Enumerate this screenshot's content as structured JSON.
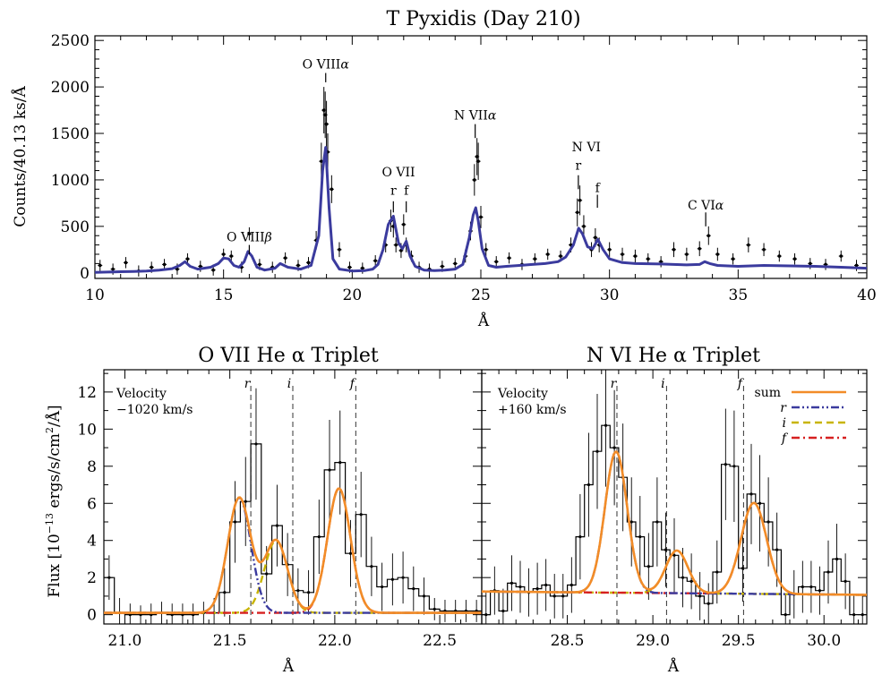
{
  "colors": {
    "model": "#3b3b9e",
    "sum": "#f28c28",
    "r": "#3b3b9e",
    "i": "#c8b400",
    "f": "#d62020",
    "data": "#000000"
  },
  "chart_data": [
    {
      "id": "top",
      "type": "line",
      "title": "T Pyxidis (Day 210)",
      "xlabel": "Å",
      "ylabel": "Counts/40.13 ks/Å",
      "xlim": [
        10,
        40
      ],
      "ylim": [
        -60,
        2550
      ],
      "xticks": [
        10,
        15,
        20,
        25,
        30,
        35,
        40
      ],
      "yticks": [
        0,
        500,
        1000,
        1500,
        2000,
        2500
      ],
      "series": [
        {
          "role": "model",
          "x": [
            10.0,
            10.5,
            11.0,
            11.5,
            12.0,
            12.5,
            13.0,
            13.3,
            13.5,
            13.7,
            14.0,
            14.5,
            14.8,
            15.0,
            15.2,
            15.4,
            15.6,
            15.8,
            15.95,
            16.1,
            16.3,
            16.6,
            17.0,
            17.2,
            17.5,
            18.0,
            18.4,
            18.7,
            18.85,
            18.97,
            19.1,
            19.25,
            19.5,
            20.0,
            20.5,
            20.8,
            21.0,
            21.2,
            21.4,
            21.6,
            21.8,
            21.95,
            22.1,
            22.25,
            22.45,
            22.8,
            23.2,
            23.6,
            24.0,
            24.3,
            24.55,
            24.7,
            24.8,
            24.9,
            25.05,
            25.3,
            25.6,
            26.0,
            26.5,
            27.0,
            27.5,
            28.0,
            28.3,
            28.6,
            28.8,
            28.95,
            29.15,
            29.35,
            29.55,
            29.75,
            30.0,
            30.5,
            31.0,
            32.0,
            33.0,
            33.5,
            33.7,
            33.9,
            34.2,
            35.0,
            36.0,
            37.0,
            38.0,
            39.0,
            40.0
          ],
          "y": [
            5,
            8,
            12,
            15,
            20,
            30,
            45,
            80,
            120,
            70,
            40,
            60,
            100,
            160,
            150,
            80,
            60,
            120,
            230,
            180,
            60,
            30,
            50,
            100,
            60,
            40,
            80,
            400,
            1100,
            1350,
            700,
            150,
            40,
            20,
            25,
            40,
            90,
            250,
            520,
            610,
            320,
            260,
            340,
            180,
            70,
            30,
            25,
            30,
            40,
            90,
            380,
            620,
            700,
            560,
            260,
            80,
            60,
            70,
            80,
            90,
            100,
            120,
            170,
            300,
            480,
            420,
            280,
            260,
            360,
            250,
            150,
            110,
            100,
            95,
            85,
            90,
            120,
            100,
            80,
            70,
            80,
            75,
            70,
            60,
            50
          ]
        },
        {
          "role": "data",
          "x": [
            10.2,
            10.7,
            11.2,
            11.7,
            12.2,
            12.7,
            13.2,
            13.6,
            14.1,
            14.6,
            15.0,
            15.3,
            15.7,
            16.0,
            16.4,
            16.9,
            17.4,
            17.9,
            18.3,
            18.6,
            18.8,
            18.9,
            18.95,
            19.0,
            19.05,
            19.2,
            19.5,
            19.9,
            20.4,
            20.9,
            21.3,
            21.5,
            21.6,
            21.7,
            21.9,
            22.0,
            22.1,
            22.3,
            22.6,
            23.0,
            23.5,
            24.0,
            24.4,
            24.6,
            24.75,
            24.85,
            24.9,
            25.0,
            25.2,
            25.6,
            26.1,
            26.6,
            27.1,
            27.6,
            28.1,
            28.5,
            28.75,
            28.85,
            29.0,
            29.3,
            29.45,
            29.6,
            30.0,
            30.5,
            31.0,
            31.5,
            32.0,
            32.5,
            33.0,
            33.5,
            33.85,
            34.2,
            34.8,
            35.4,
            36.0,
            36.6,
            37.2,
            37.8,
            38.4,
            39.0,
            39.6
          ],
          "y": [
            80,
            40,
            110,
            20,
            60,
            90,
            40,
            150,
            70,
            30,
            200,
            180,
            60,
            420,
            90,
            60,
            160,
            80,
            110,
            350,
            1200,
            1750,
            1700,
            1600,
            1300,
            900,
            250,
            60,
            50,
            130,
            300,
            560,
            500,
            300,
            240,
            520,
            300,
            180,
            60,
            40,
            70,
            100,
            180,
            450,
            1000,
            1250,
            1200,
            600,
            250,
            120,
            160,
            90,
            150,
            200,
            180,
            300,
            650,
            780,
            500,
            250,
            380,
            300,
            250,
            200,
            180,
            150,
            120,
            250,
            200,
            260,
            400,
            200,
            150,
            300,
            250,
            180,
            150,
            100,
            90,
            180,
            80
          ],
          "err": [
            60,
            60,
            60,
            60,
            60,
            60,
            60,
            60,
            60,
            60,
            60,
            60,
            60,
            70,
            60,
            60,
            60,
            60,
            60,
            100,
            200,
            250,
            250,
            250,
            200,
            150,
            80,
            60,
            60,
            60,
            80,
            120,
            120,
            80,
            80,
            110,
            80,
            60,
            60,
            60,
            60,
            60,
            70,
            100,
            170,
            200,
            200,
            120,
            70,
            60,
            60,
            60,
            60,
            60,
            60,
            80,
            150,
            160,
            120,
            80,
            100,
            80,
            80,
            70,
            70,
            60,
            60,
            80,
            70,
            80,
            100,
            70,
            60,
            80,
            70,
            60,
            60,
            60,
            60,
            60,
            60
          ]
        }
      ],
      "annotations": [
        {
          "text": "O VIII",
          "greek": "β",
          "x": 16.0,
          "y": 340,
          "tickTop": 300,
          "tickBottom": 200
        },
        {
          "text": "O VIII",
          "greek": "α",
          "x": 18.97,
          "y": 2200,
          "tickTop": 2150,
          "tickBottom": 2050
        },
        {
          "text": "O VII",
          "greek": "",
          "x": 21.8,
          "y": 1040,
          "tickTop": 0,
          "tickBottom": 0
        },
        {
          "text": "r",
          "greek": "",
          "x": 21.6,
          "y": 840,
          "tickTop": 770,
          "tickBottom": 650
        },
        {
          "text": "f",
          "greek": "",
          "x": 22.1,
          "y": 840,
          "tickTop": 770,
          "tickBottom": 650
        },
        {
          "text": "N VII",
          "greek": "α",
          "x": 24.78,
          "y": 1650,
          "tickTop": 1600,
          "tickBottom": 1450
        },
        {
          "text": "N VI",
          "greek": "",
          "x": 29.1,
          "y": 1310,
          "tickTop": 0,
          "tickBottom": 0
        },
        {
          "text": "r",
          "greek": "",
          "x": 28.79,
          "y": 1110,
          "tickTop": 1050,
          "tickBottom": 900
        },
        {
          "text": "f",
          "greek": "",
          "x": 29.53,
          "y": 870,
          "tickTop": 840,
          "tickBottom": 700
        },
        {
          "text": "C VI",
          "greek": "α",
          "x": 33.74,
          "y": 680,
          "tickTop": 650,
          "tickBottom": 500
        }
      ]
    },
    {
      "id": "left",
      "type": "line",
      "title": "O VII He α Triplet",
      "xlabel": "Å",
      "ylabel": "Flux [10^-13 ergs/s/cm²/Å]",
      "xlim": [
        20.9,
        22.7
      ],
      "ylim": [
        -0.5,
        13.2
      ],
      "xticks": [
        21.0,
        21.5,
        22.0,
        22.5
      ],
      "yticks": [
        0,
        2,
        4,
        6,
        8,
        10,
        12
      ],
      "velocity_label": "Velocity",
      "velocity_value": "−1020 km/s",
      "lines": [
        {
          "label": "r",
          "x": 21.6
        },
        {
          "label": "i",
          "x": 21.8
        },
        {
          "label": "f",
          "x": 22.1
        }
      ],
      "hist": {
        "edges": [
          20.9,
          20.95,
          21.0,
          21.05,
          21.1,
          21.15,
          21.2,
          21.25,
          21.3,
          21.35,
          21.4,
          21.45,
          21.5,
          21.55,
          21.6,
          21.65,
          21.7,
          21.75,
          21.8,
          21.85,
          21.9,
          21.95,
          22.0,
          22.05,
          22.1,
          22.15,
          22.2,
          22.25,
          22.3,
          22.35,
          22.4,
          22.45,
          22.5,
          22.55,
          22.6,
          22.65,
          22.7
        ],
        "values": [
          2.0,
          0.1,
          0.0,
          0.0,
          0.0,
          0.1,
          0.0,
          0.0,
          0.0,
          0.1,
          0.1,
          1.2,
          5.0,
          6.1,
          9.2,
          2.2,
          4.8,
          2.7,
          1.3,
          1.2,
          4.2,
          7.8,
          8.2,
          3.3,
          5.4,
          2.6,
          1.5,
          1.9,
          2.0,
          1.4,
          1.0,
          0.3,
          0.2,
          0.2,
          0.2,
          0.2
        ],
        "errs": [
          1.2,
          0.8,
          0.6,
          0.5,
          0.6,
          0.6,
          0.6,
          0.6,
          0.6,
          0.6,
          0.8,
          1.3,
          2.2,
          2.4,
          3.0,
          1.5,
          2.2,
          1.7,
          1.2,
          1.2,
          2.0,
          2.7,
          2.8,
          1.8,
          2.3,
          1.6,
          1.3,
          1.4,
          1.4,
          1.2,
          1.0,
          0.6,
          0.6,
          0.6,
          0.6,
          0.6
        ]
      },
      "components": {
        "baseline": 0.1,
        "r": {
          "center": 21.545,
          "amp": 6.2,
          "sigma": 0.055
        },
        "i": {
          "center": 21.72,
          "amp": 3.9,
          "sigma": 0.055
        },
        "f": {
          "center": 22.02,
          "amp": 6.7,
          "sigma": 0.055
        }
      }
    },
    {
      "id": "right",
      "type": "line",
      "title": "N VI He α Triplet",
      "xlabel": "Å",
      "xlim": [
        28.0,
        30.25
      ],
      "ylim": [
        -0.5,
        13.2
      ],
      "xticks": [
        28.5,
        29.0,
        29.5,
        30.0
      ],
      "velocity_label": "Velocity",
      "velocity_value": "+160 km/s",
      "lines": [
        {
          "label": "r",
          "x": 28.79
        },
        {
          "label": "i",
          "x": 29.08
        },
        {
          "label": "f",
          "x": 29.53
        }
      ],
      "legend": [
        {
          "label": "sum",
          "role": "sum"
        },
        {
          "label": "r",
          "role": "r"
        },
        {
          "label": "i",
          "role": "i"
        },
        {
          "label": "f",
          "role": "f"
        }
      ],
      "hist": {
        "edges": [
          28.0,
          28.05,
          28.1,
          28.15,
          28.2,
          28.25,
          28.3,
          28.35,
          28.4,
          28.45,
          28.5,
          28.55,
          28.6,
          28.65,
          28.7,
          28.75,
          28.8,
          28.85,
          28.9,
          28.95,
          29.0,
          29.05,
          29.1,
          29.15,
          29.2,
          29.25,
          29.3,
          29.35,
          29.4,
          29.45,
          29.5,
          29.55,
          29.6,
          29.65,
          29.7,
          29.75,
          29.8,
          29.85,
          29.9,
          29.95,
          30.0,
          30.05,
          30.1,
          30.15,
          30.2,
          30.25
        ],
        "values": [
          0.0,
          1.3,
          0.2,
          1.7,
          1.5,
          1.2,
          1.4,
          1.6,
          1.0,
          1.0,
          1.6,
          4.2,
          7.0,
          8.8,
          10.2,
          9.0,
          7.4,
          5.0,
          4.2,
          2.6,
          5.0,
          3.5,
          3.2,
          2.0,
          1.8,
          1.0,
          0.6,
          2.3,
          8.1,
          8.0,
          2.5,
          6.5,
          6.0,
          5.0,
          3.5,
          0.0,
          1.1,
          1.5,
          1.5,
          1.3,
          2.3,
          3.0,
          1.8,
          0.0,
          0.0
        ],
        "errs": [
          1.3,
          1.3,
          1.2,
          1.5,
          1.4,
          1.3,
          1.4,
          1.4,
          1.2,
          1.2,
          1.5,
          2.3,
          2.8,
          3.1,
          3.3,
          3.1,
          2.9,
          2.4,
          2.2,
          1.8,
          2.4,
          2.0,
          2.0,
          1.6,
          1.5,
          1.3,
          1.1,
          1.7,
          3.0,
          3.0,
          1.8,
          2.7,
          2.6,
          2.4,
          2.0,
          1.1,
          1.3,
          1.4,
          1.4,
          1.3,
          1.7,
          1.9,
          1.5,
          1.1,
          1.1
        ]
      },
      "components": {
        "baseline": 1.25,
        "baseline_slope": -0.08,
        "r": {
          "center": 28.785,
          "amp": 7.6,
          "sigma": 0.065
        },
        "i": {
          "center": 29.14,
          "amp": 2.3,
          "sigma": 0.065
        },
        "f": {
          "center": 29.59,
          "amp": 4.9,
          "sigma": 0.075
        }
      }
    }
  ]
}
